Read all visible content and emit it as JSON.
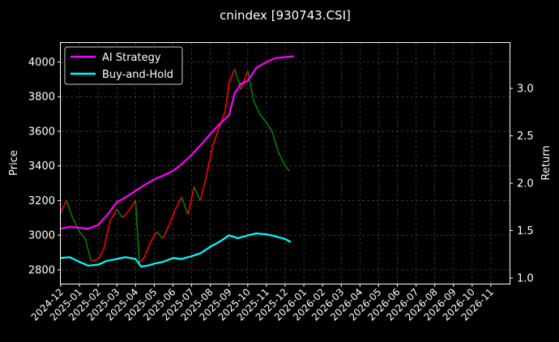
{
  "chart_data": {
    "type": "line",
    "title": "cnindex [930743.CSI]",
    "ylabel_left": "Price",
    "ylabel_right": "Return",
    "x_ticks": [
      "2024-12",
      "2025-01",
      "2025-02",
      "2025-03",
      "2025-04",
      "2025-05",
      "2025-06",
      "2025-07",
      "2025-08",
      "2025-09",
      "2025-10",
      "2025-11",
      "2025-12",
      "2026-01",
      "2026-02",
      "2026-03",
      "2026-04",
      "2026-05",
      "2026-06",
      "2026-07",
      "2026-08",
      "2026-09",
      "2026-10",
      "2026-11"
    ],
    "x_range": [
      "2024-12",
      "2026-12"
    ],
    "y_left_ticks": [
      "2800",
      "3000",
      "3200",
      "3400",
      "3600",
      "3800",
      "4000"
    ],
    "y_left_range": [
      2720,
      4110
    ],
    "y_right_ticks": [
      "1.0",
      "1.5",
      "2.0",
      "2.5",
      "3.0"
    ],
    "y_right_range": [
      0.94,
      3.48
    ],
    "grid": true,
    "legend_position": "top-left",
    "series": [
      {
        "name": "AI Strategy",
        "color": "#ff00ff",
        "axis": "right",
        "x": [
          "2024-12-01",
          "2024-12-15",
          "2025-01-01",
          "2025-01-15",
          "2025-02-01",
          "2025-02-15",
          "2025-03-01",
          "2025-03-15",
          "2025-04-01",
          "2025-04-15",
          "2025-05-01",
          "2025-05-15",
          "2025-06-01",
          "2025-06-15",
          "2025-07-01",
          "2025-07-15",
          "2025-08-01",
          "2025-08-15",
          "2025-09-01",
          "2025-09-10",
          "2025-09-20",
          "2025-10-01",
          "2025-10-15",
          "2025-11-01",
          "2025-11-15",
          "2025-12-01",
          "2025-12-15"
        ],
        "values": [
          1.52,
          1.54,
          1.53,
          1.52,
          1.56,
          1.66,
          1.8,
          1.85,
          1.92,
          1.98,
          2.04,
          2.08,
          2.13,
          2.2,
          2.3,
          2.4,
          2.52,
          2.62,
          2.72,
          2.95,
          3.05,
          3.08,
          3.22,
          3.28,
          3.32,
          3.33,
          3.34
        ]
      },
      {
        "name": "Buy-and-Hold",
        "color": "#00ffff",
        "axis": "right",
        "x": [
          "2024-12-01",
          "2024-12-15",
          "2025-01-01",
          "2025-01-15",
          "2025-02-01",
          "2025-02-15",
          "2025-03-01",
          "2025-03-15",
          "2025-04-01",
          "2025-04-10",
          "2025-04-20",
          "2025-05-01",
          "2025-05-15",
          "2025-06-01",
          "2025-06-15",
          "2025-07-01",
          "2025-07-15",
          "2025-08-01",
          "2025-08-15",
          "2025-09-01",
          "2025-09-15",
          "2025-10-01",
          "2025-10-15",
          "2025-11-01",
          "2025-11-15",
          "2025-12-01",
          "2025-12-10"
        ],
        "values": [
          1.21,
          1.22,
          1.17,
          1.13,
          1.14,
          1.18,
          1.2,
          1.22,
          1.2,
          1.12,
          1.13,
          1.15,
          1.17,
          1.21,
          1.2,
          1.23,
          1.26,
          1.33,
          1.38,
          1.45,
          1.42,
          1.45,
          1.47,
          1.46,
          1.44,
          1.41,
          1.38
        ]
      }
    ],
    "price_series": {
      "name": "Price",
      "axis": "left",
      "up_color": "#ff0000",
      "down_color": "#008000",
      "x": [
        "2024-12-01",
        "2024-12-10",
        "2024-12-20",
        "2025-01-01",
        "2025-01-10",
        "2025-01-20",
        "2025-02-01",
        "2025-02-10",
        "2025-02-20",
        "2025-03-01",
        "2025-03-10",
        "2025-03-20",
        "2025-04-01",
        "2025-04-07",
        "2025-04-15",
        "2025-04-25",
        "2025-05-05",
        "2025-05-15",
        "2025-05-25",
        "2025-06-05",
        "2025-06-15",
        "2025-06-25",
        "2025-07-05",
        "2025-07-15",
        "2025-07-25",
        "2025-08-05",
        "2025-08-15",
        "2025-08-25",
        "2025-09-01",
        "2025-09-10",
        "2025-09-20",
        "2025-10-01",
        "2025-10-10",
        "2025-10-20",
        "2025-11-01",
        "2025-11-10",
        "2025-11-20",
        "2025-12-01",
        "2025-12-08"
      ],
      "values": [
        3130,
        3200,
        3100,
        3020,
        2980,
        2850,
        2860,
        2920,
        3080,
        3150,
        3100,
        3140,
        3200,
        2840,
        2870,
        2960,
        3020,
        2980,
        3060,
        3150,
        3220,
        3120,
        3280,
        3200,
        3350,
        3520,
        3620,
        3720,
        3880,
        3960,
        3840,
        3950,
        3780,
        3700,
        3650,
        3600,
        3480,
        3400,
        3370
      ]
    }
  }
}
